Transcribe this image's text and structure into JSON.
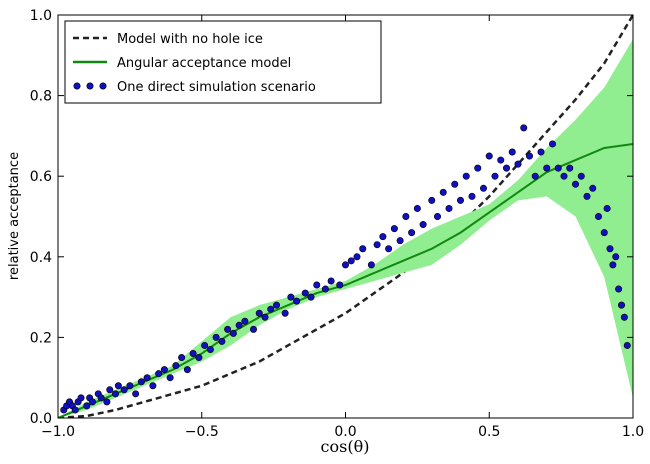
{
  "chart_data": {
    "type": "line",
    "x_label": "cos(θ)",
    "y_label": "relative acceptance",
    "xlim": [
      -1,
      1
    ],
    "ylim": [
      0,
      1
    ],
    "xticks": [
      {
        "value": -1,
        "label": "−1.0"
      },
      {
        "value": -0.5,
        "label": "−0.5"
      },
      {
        "value": 0,
        "label": "0.0"
      },
      0.5,
      {
        "value": 1,
        "label": "1.0"
      }
    ],
    "yticks": [
      {
        "value": 0,
        "label": "0.0"
      },
      0.2,
      0.4,
      0.6,
      0.8,
      {
        "value": 1,
        "label": "1.0"
      }
    ],
    "legend": "upper left",
    "series": [
      {
        "name": "Model with no hole ice",
        "kind": "line",
        "dashed": true,
        "color": "#222222",
        "x": [
          -1,
          -0.9,
          -0.8,
          -0.7,
          -0.6,
          -0.5,
          -0.4,
          -0.3,
          -0.2,
          -0.1,
          0,
          0.1,
          0.2,
          0.3,
          0.4,
          0.5,
          0.6,
          0.7,
          0.8,
          0.9,
          1
        ],
        "values": [
          0,
          0.005,
          0.02,
          0.04,
          0.06,
          0.08,
          0.11,
          0.14,
          0.18,
          0.22,
          0.26,
          0.31,
          0.36,
          0.42,
          0.48,
          0.55,
          0.63,
          0.71,
          0.79,
          0.88,
          1.0
        ]
      },
      {
        "name": "Angular acceptance model",
        "kind": "line",
        "dashed": false,
        "color": "#118811",
        "band_color": "#90ee90",
        "x": [
          -1,
          -0.9,
          -0.8,
          -0.7,
          -0.6,
          -0.5,
          -0.4,
          -0.3,
          -0.2,
          -0.1,
          0,
          0.1,
          0.2,
          0.3,
          0.4,
          0.5,
          0.6,
          0.7,
          0.8,
          0.9,
          1
        ],
        "values": [
          0,
          0.03,
          0.06,
          0.09,
          0.12,
          0.16,
          0.21,
          0.25,
          0.28,
          0.31,
          0.33,
          0.36,
          0.39,
          0.42,
          0.46,
          0.51,
          0.56,
          0.61,
          0.64,
          0.67,
          0.68
        ],
        "lower": [
          0,
          0.02,
          0.05,
          0.08,
          0.11,
          0.14,
          0.18,
          0.23,
          0.27,
          0.3,
          0.32,
          0.34,
          0.36,
          0.38,
          0.43,
          0.49,
          0.54,
          0.55,
          0.5,
          0.35,
          0.05
        ],
        "upper": [
          0,
          0.04,
          0.07,
          0.1,
          0.13,
          0.19,
          0.25,
          0.28,
          0.3,
          0.32,
          0.34,
          0.38,
          0.43,
          0.47,
          0.5,
          0.53,
          0.59,
          0.67,
          0.74,
          0.82,
          0.94
        ]
      },
      {
        "name": "One direct simulation scenario",
        "kind": "scatter",
        "color": "#1010c0",
        "x": [
          -0.98,
          -0.97,
          -0.96,
          -0.95,
          -0.94,
          -0.93,
          -0.92,
          -0.9,
          -0.89,
          -0.88,
          -0.86,
          -0.85,
          -0.83,
          -0.82,
          -0.8,
          -0.79,
          -0.77,
          -0.75,
          -0.73,
          -0.71,
          -0.69,
          -0.67,
          -0.65,
          -0.63,
          -0.61,
          -0.59,
          -0.57,
          -0.55,
          -0.53,
          -0.51,
          -0.49,
          -0.47,
          -0.45,
          -0.43,
          -0.41,
          -0.39,
          -0.37,
          -0.35,
          -0.32,
          -0.3,
          -0.28,
          -0.26,
          -0.24,
          -0.21,
          -0.19,
          -0.17,
          -0.14,
          -0.12,
          -0.1,
          -0.07,
          -0.05,
          -0.02,
          0,
          0.02,
          0.04,
          0.06,
          0.09,
          0.11,
          0.13,
          0.15,
          0.17,
          0.19,
          0.21,
          0.23,
          0.25,
          0.27,
          0.3,
          0.32,
          0.34,
          0.36,
          0.38,
          0.4,
          0.42,
          0.44,
          0.46,
          0.48,
          0.5,
          0.52,
          0.54,
          0.56,
          0.58,
          0.6,
          0.62,
          0.64,
          0.66,
          0.68,
          0.7,
          0.72,
          0.74,
          0.76,
          0.78,
          0.8,
          0.82,
          0.84,
          0.86,
          0.88,
          0.9,
          0.91,
          0.92,
          0.93,
          0.94,
          0.95,
          0.96,
          0.97,
          0.98
        ],
        "values": [
          0.02,
          0.03,
          0.04,
          0.03,
          0.02,
          0.04,
          0.05,
          0.03,
          0.05,
          0.04,
          0.06,
          0.05,
          0.04,
          0.07,
          0.06,
          0.08,
          0.07,
          0.08,
          0.06,
          0.09,
          0.1,
          0.08,
          0.11,
          0.12,
          0.1,
          0.13,
          0.15,
          0.12,
          0.16,
          0.15,
          0.18,
          0.17,
          0.2,
          0.19,
          0.22,
          0.21,
          0.23,
          0.24,
          0.22,
          0.26,
          0.25,
          0.27,
          0.28,
          0.26,
          0.3,
          0.29,
          0.31,
          0.3,
          0.33,
          0.32,
          0.34,
          0.33,
          0.38,
          0.39,
          0.4,
          0.42,
          0.38,
          0.43,
          0.45,
          0.42,
          0.47,
          0.44,
          0.5,
          0.46,
          0.52,
          0.48,
          0.54,
          0.5,
          0.56,
          0.52,
          0.58,
          0.54,
          0.6,
          0.55,
          0.62,
          0.57,
          0.65,
          0.6,
          0.64,
          0.62,
          0.66,
          0.63,
          0.72,
          0.65,
          0.6,
          0.66,
          0.62,
          0.68,
          0.62,
          0.6,
          0.62,
          0.58,
          0.6,
          0.55,
          0.57,
          0.5,
          0.46,
          0.52,
          0.42,
          0.38,
          0.4,
          0.32,
          0.28,
          0.25,
          0.18
        ]
      }
    ]
  }
}
